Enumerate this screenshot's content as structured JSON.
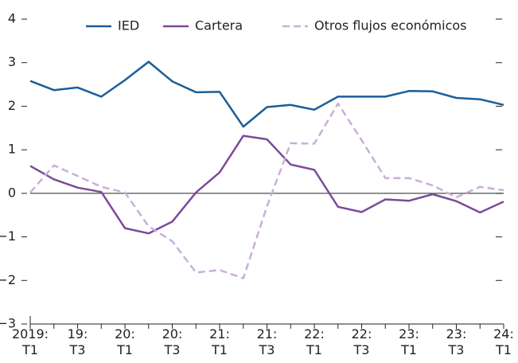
{
  "chart_data": {
    "type": "line",
    "categories": [
      "2019:\nT1",
      null,
      "19:\nT3",
      null,
      "20:\nT1",
      null,
      "20:\nT3",
      null,
      "21:\nT1",
      null,
      "21:\nT3",
      null,
      "22:\nT1",
      null,
      "22:\nT3",
      null,
      "23:\nT1",
      null,
      "23:\nT3",
      null,
      "24:\nT1"
    ],
    "series": [
      {
        "name": "IED",
        "color": "#1b5e98",
        "style": "solid",
        "values": [
          2.58,
          2.37,
          2.43,
          2.22,
          2.6,
          3.02,
          2.57,
          2.32,
          2.33,
          1.53,
          1.98,
          2.03,
          1.92,
          2.22,
          2.22,
          2.22,
          2.35,
          2.34,
          2.19,
          2.16,
          2.03
        ]
      },
      {
        "name": "Cartera",
        "color": "#7b4b9b",
        "style": "solid",
        "values": [
          0.63,
          0.32,
          0.13,
          0.03,
          -0.8,
          -0.92,
          -0.65,
          0.02,
          0.48,
          1.32,
          1.24,
          0.66,
          0.54,
          -0.31,
          -0.43,
          -0.14,
          -0.17,
          -0.02,
          -0.18,
          -0.44,
          -0.19
        ]
      },
      {
        "name": "Otros flujos económicos",
        "color": "#c9afd9",
        "style": "dashed",
        "values": [
          0.02,
          0.64,
          0.4,
          0.15,
          0.02,
          -0.76,
          -1.1,
          -1.82,
          -1.76,
          -1.95,
          -0.3,
          1.15,
          1.14,
          2.06,
          1.22,
          0.35,
          0.35,
          0.18,
          -0.09,
          0.15,
          0.07
        ]
      }
    ],
    "ylim": [
      -3,
      4
    ],
    "yticks": [
      {
        "value": -3,
        "label": "−3"
      },
      {
        "value": -2,
        "label": "−2"
      },
      {
        "value": -1,
        "label": "−1"
      },
      0,
      1,
      2,
      3,
      4
    ],
    "legend": "top"
  }
}
